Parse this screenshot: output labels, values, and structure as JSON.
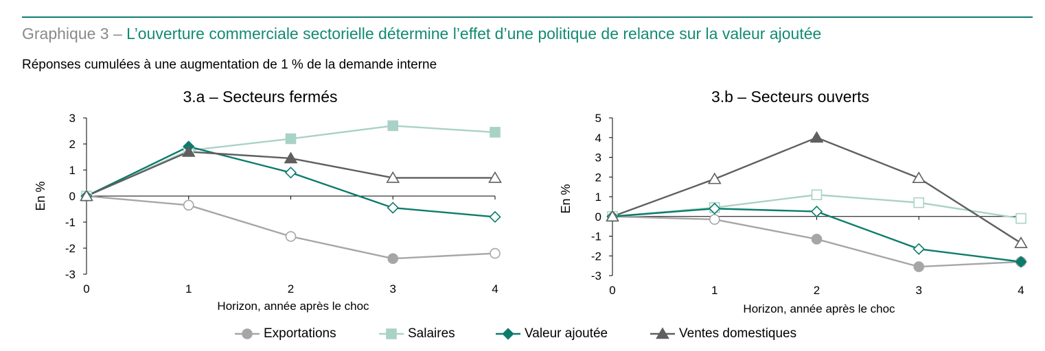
{
  "header": {
    "title_prefix": "Graphique 3 – ",
    "title_main": "L’ouverture commerciale sectorielle détermine l’effet d’une politique de relance sur la valeur ajoutée",
    "subtitle": "Réponses cumulées à une augmentation de 1 % de la demande interne"
  },
  "colors": {
    "exportations": "#a6a6a6",
    "salaires": "#a9d2c6",
    "valeur_ajoutee": "#0b7c6b",
    "ventes_domestiques": "#5f5f5f",
    "title_accent": "#138a72",
    "rule": "#0f7d6e"
  },
  "chart_data": [
    {
      "type": "line",
      "title": "3.a – Secteurs fermés",
      "xlabel": "Horizon, année après le choc",
      "ylabel": "En %",
      "x": [
        0,
        1,
        2,
        3,
        4
      ],
      "xticks": [
        "0",
        "1",
        "2",
        "3",
        "4"
      ],
      "ylim": [
        -3,
        3
      ],
      "yticks": [
        "3",
        "2",
        "1",
        "0",
        "-1",
        "-2",
        "-3"
      ],
      "grid": false,
      "series": [
        {
          "name": "Exportations",
          "values": [
            0,
            -0.35,
            -1.55,
            -2.4,
            -2.2
          ],
          "filled": [
            false,
            false,
            false,
            true,
            false
          ]
        },
        {
          "name": "Salaires",
          "values": [
            0,
            1.75,
            2.2,
            2.7,
            2.45
          ],
          "filled": [
            false,
            false,
            true,
            true,
            true
          ]
        },
        {
          "name": "Valeur ajoutée",
          "values": [
            0,
            1.9,
            0.9,
            -0.45,
            -0.8
          ],
          "filled": [
            false,
            true,
            false,
            false,
            false
          ]
        },
        {
          "name": "Ventes domestiques",
          "values": [
            0,
            1.7,
            1.45,
            0.7,
            0.7
          ],
          "filled": [
            false,
            true,
            true,
            false,
            false
          ]
        }
      ]
    },
    {
      "type": "line",
      "title": "3.b – Secteurs ouverts",
      "xlabel": "Horizon, année après le choc",
      "ylabel": "En %",
      "x": [
        0,
        1,
        2,
        3,
        4
      ],
      "xticks": [
        "0",
        "1",
        "2",
        "3",
        "4"
      ],
      "ylim": [
        -3,
        5
      ],
      "yticks": [
        "5",
        "4",
        "3",
        "2",
        "1",
        "0",
        "-1",
        "-2",
        "-3"
      ],
      "grid": false,
      "series": [
        {
          "name": "Exportations",
          "values": [
            0,
            -0.15,
            -1.15,
            -2.55,
            -2.3
          ],
          "filled": [
            false,
            false,
            true,
            true,
            true
          ]
        },
        {
          "name": "Salaires",
          "values": [
            0,
            0.45,
            1.1,
            0.7,
            -0.1
          ],
          "filled": [
            false,
            false,
            false,
            false,
            false
          ]
        },
        {
          "name": "Valeur ajoutée",
          "values": [
            0,
            0.4,
            0.25,
            -1.65,
            -2.3
          ],
          "filled": [
            false,
            false,
            false,
            false,
            true
          ]
        },
        {
          "name": "Ventes domestiques",
          "values": [
            0,
            1.9,
            4.0,
            1.95,
            -1.35
          ],
          "filled": [
            false,
            false,
            true,
            false,
            false
          ]
        }
      ]
    }
  ],
  "legend": [
    {
      "name": "Exportations",
      "marker": "circle",
      "filled": true
    },
    {
      "name": "Salaires",
      "marker": "square",
      "filled": true
    },
    {
      "name": "Valeur ajoutée",
      "marker": "diamond",
      "filled": true
    },
    {
      "name": "Ventes domestiques",
      "marker": "triangle",
      "filled": true
    }
  ]
}
